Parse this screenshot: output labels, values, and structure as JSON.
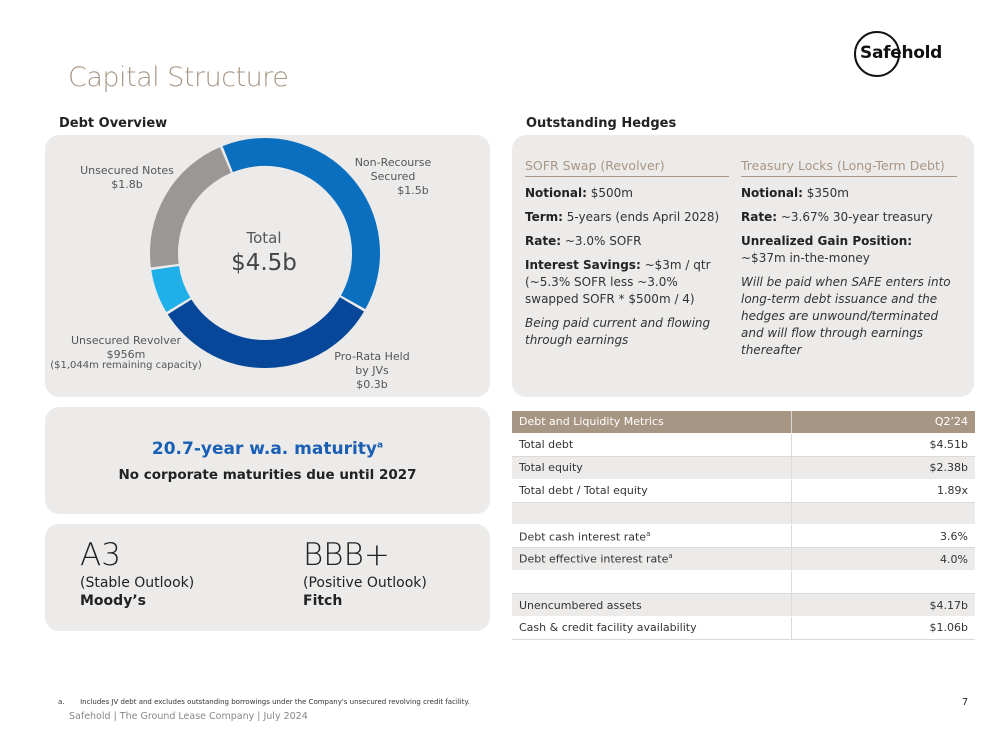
{
  "page": {
    "title": "Capital Structure",
    "logo_text": "Safehold",
    "page_number": "7",
    "footnote_marker": "a.",
    "footnote": "Includes JV debt and excludes outstanding borrowings under the Company's unsecured revolving credit facility.",
    "footer": "Safehold | The Ground Lease Company | July 2024"
  },
  "debt_overview": {
    "heading": "Debt Overview",
    "center_label": "Total",
    "center_value": "$4.5b",
    "segments": [
      {
        "name": "Unsecured Notes",
        "value": 1.8,
        "label": "Unsecured Notes",
        "amount": "$1.8b",
        "color": "#0b6fc0"
      },
      {
        "name": "Non-Recourse Secured",
        "value": 1.5,
        "label": "Non-Recourse Secured",
        "amount": "$1.5b",
        "color": "#06479a"
      },
      {
        "name": "Pro-Rata Held by JVs",
        "value": 0.3,
        "label": "Pro-Rata Held by JVs",
        "amount": "$0.3b",
        "color": "#1fb0ea"
      },
      {
        "name": "Unsecured Revolver",
        "value": 0.956,
        "label": "Unsecured Revolver",
        "amount": "$956m",
        "extra": "($1,044m remaining capacity)",
        "color": "#9b9794"
      }
    ]
  },
  "maturity": {
    "headline": "20.7-year w.a. maturity",
    "superscript": "a",
    "subline": "No corporate maturities due until 2027"
  },
  "ratings": [
    {
      "grade": "A3",
      "outlook": "(Stable Outlook)",
      "agency": "Moody’s"
    },
    {
      "grade": "BBB+",
      "outlook": "(Positive Outlook)",
      "agency": "Fitch"
    }
  ],
  "hedges": {
    "heading": "Outstanding Hedges",
    "sofr": {
      "title": "SOFR Swap (Revolver)",
      "notional_label": "Notional:",
      "notional_value": "$500m",
      "term_label": "Term:",
      "term_value": "5-years (ends April 2028)",
      "rate_label": "Rate:",
      "rate_value": "~3.0% SOFR",
      "savings_label": "Interest Savings:",
      "savings_value": "~$3m / qtr (~5.3% SOFR less ~3.0% swapped SOFR * $500m / 4)",
      "note": "Being paid current and flowing through earnings"
    },
    "treasury": {
      "title": "Treasury Locks (Long-Term Debt)",
      "notional_label": "Notional:",
      "notional_value": "$350m",
      "rate_label": "Rate:",
      "rate_value": "~3.67% 30-year treasury",
      "gain_label": "Unrealized Gain Position:",
      "gain_value": "~$37m in-the-money",
      "note": "Will be paid when SAFE enters into long-term debt issuance and the hedges are unwound/terminated and will flow through earnings thereafter"
    }
  },
  "metrics": {
    "header_label": "Debt and Liquidity Metrics",
    "header_period": "Q2’24",
    "rows": [
      {
        "label": "Total debt",
        "value": "$4.51b"
      },
      {
        "label": "Total equity",
        "value": "$2.38b"
      },
      {
        "label": "Total debt / Total equity",
        "value": "1.89x"
      },
      {
        "label": "",
        "value": ""
      },
      {
        "label": "Debt cash interest rate",
        "sup": "a",
        "value": "3.6%"
      },
      {
        "label": "Debt effective interest rate",
        "sup": "a",
        "value": "4.0%"
      },
      {
        "label": "",
        "value": ""
      },
      {
        "label": "Unencumbered assets",
        "value": "$4.17b"
      },
      {
        "label": "Cash & credit facility availability",
        "value": "$1.06b"
      }
    ]
  }
}
